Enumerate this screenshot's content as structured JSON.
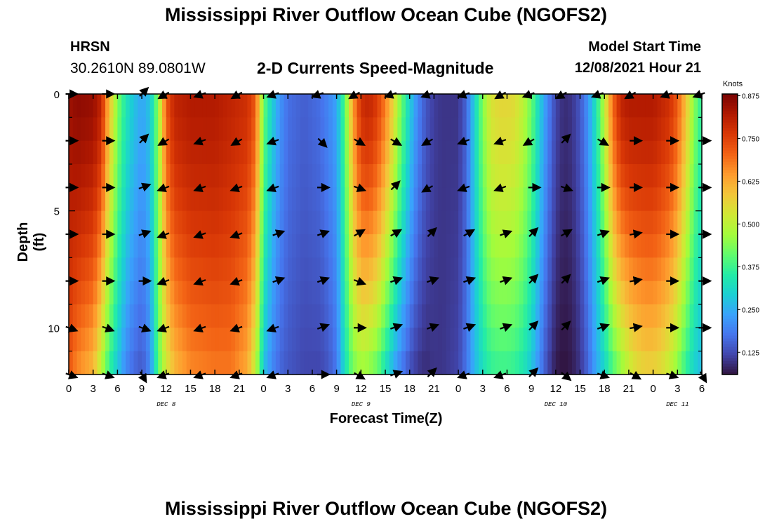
{
  "header": {
    "title": "Mississippi River Outflow Ocean Cube (NGOFS2)",
    "station": "HRSN",
    "coordinates": "30.2610N  89.0801W",
    "plot_title": "2-D Currents Speed-Magnitude",
    "model_start_label": "Model Start Time",
    "model_start_value": "12/08/2021 Hour 21"
  },
  "footer": {
    "title": "Mississippi River Outflow Ocean Cube (NGOFS2)"
  },
  "colors": {
    "colormap": [
      "#30123b",
      "#4145ab",
      "#4675ed",
      "#39a2fc",
      "#1bcfd4",
      "#24eca6",
      "#61fc6c",
      "#a4fc3b",
      "#d1e834",
      "#f3c63a",
      "#fe9b2d",
      "#f36315",
      "#d93806",
      "#b11901",
      "#7a0403"
    ]
  },
  "chart_data": {
    "type": "heatmap",
    "title": "2-D Currents Speed-Magnitude",
    "xlabel": "Forecast Time(Z)",
    "ylabel": "Depth (ft)",
    "xlim": [
      0,
      78
    ],
    "ylim": [
      0,
      12
    ],
    "x_ticks": [
      0,
      3,
      6,
      9,
      12,
      15,
      18,
      21,
      24,
      27,
      30,
      33,
      36,
      39,
      42,
      45,
      48,
      51,
      54,
      57,
      60,
      63,
      66,
      69,
      72,
      75,
      78
    ],
    "x_tick_labels": [
      "0",
      "3",
      "6",
      "9",
      "12",
      "15",
      "18",
      "21",
      "0",
      "3",
      "6",
      "9",
      "12",
      "15",
      "18",
      "21",
      "0",
      "3",
      "6",
      "9",
      "12",
      "15",
      "18",
      "21",
      "0",
      "3",
      "6"
    ],
    "y_ticks": [
      0,
      5,
      10
    ],
    "y_tick_labels": [
      "0",
      "5",
      "10"
    ],
    "date_labels": [
      {
        "x": 12,
        "label": "DEC 8"
      },
      {
        "x": 36,
        "label": "DEC 9"
      },
      {
        "x": 60,
        "label": "DEC 10"
      },
      {
        "x": 75,
        "label": "DEC 11"
      }
    ],
    "colorbar": {
      "unit": "Knots",
      "min": 0.06,
      "max": 0.88,
      "ticks": [
        0.125,
        0.25,
        0.375,
        0.5,
        0.625,
        0.75,
        0.875
      ],
      "tick_labels": [
        "0.125",
        "0.250",
        "0.375",
        "0.500",
        "0.625",
        "0.750",
        "0.875"
      ]
    },
    "speed_profile": {
      "x": [
        0,
        1,
        3,
        4,
        5,
        6,
        7,
        8,
        9,
        10,
        11,
        12,
        13,
        15,
        18,
        20,
        22,
        23,
        24,
        25,
        26,
        27,
        29,
        31,
        32,
        33,
        34,
        35,
        36,
        37,
        38,
        39,
        40,
        41,
        42,
        43,
        44,
        45,
        46,
        48,
        49,
        50,
        51,
        52,
        53,
        54,
        55,
        56,
        57,
        58,
        59,
        60,
        61,
        62,
        63,
        64,
        65,
        66,
        67,
        68,
        69,
        70,
        71,
        72,
        73,
        74,
        75,
        76,
        77,
        78
      ],
      "surface_speed": [
        0.84,
        0.86,
        0.85,
        0.8,
        0.6,
        0.44,
        0.34,
        0.28,
        0.24,
        0.28,
        0.45,
        0.72,
        0.8,
        0.82,
        0.82,
        0.8,
        0.78,
        0.72,
        0.42,
        0.3,
        0.22,
        0.17,
        0.15,
        0.17,
        0.2,
        0.24,
        0.4,
        0.64,
        0.78,
        0.8,
        0.76,
        0.68,
        0.56,
        0.42,
        0.3,
        0.2,
        0.14,
        0.11,
        0.1,
        0.1,
        0.16,
        0.3,
        0.44,
        0.54,
        0.56,
        0.56,
        0.55,
        0.5,
        0.42,
        0.3,
        0.2,
        0.12,
        0.09,
        0.1,
        0.14,
        0.22,
        0.34,
        0.5,
        0.7,
        0.8,
        0.82,
        0.82,
        0.82,
        0.82,
        0.8,
        0.78,
        0.72,
        0.6,
        0.45,
        0.35
      ],
      "deep_speed": [
        0.72,
        0.66,
        0.6,
        0.48,
        0.36,
        0.28,
        0.2,
        0.16,
        0.14,
        0.2,
        0.4,
        0.52,
        0.6,
        0.66,
        0.68,
        0.68,
        0.62,
        0.5,
        0.28,
        0.2,
        0.16,
        0.14,
        0.12,
        0.12,
        0.14,
        0.18,
        0.32,
        0.42,
        0.46,
        0.44,
        0.4,
        0.32,
        0.24,
        0.18,
        0.13,
        0.1,
        0.09,
        0.1,
        0.1,
        0.12,
        0.18,
        0.26,
        0.32,
        0.36,
        0.37,
        0.37,
        0.36,
        0.33,
        0.28,
        0.2,
        0.12,
        0.07,
        0.06,
        0.07,
        0.1,
        0.16,
        0.24,
        0.3,
        0.38,
        0.44,
        0.5,
        0.54,
        0.56,
        0.56,
        0.54,
        0.5,
        0.44,
        0.36,
        0.3,
        0.26
      ]
    },
    "vector_x": [
      0,
      4.5,
      9,
      12,
      16.5,
      21,
      25.5,
      31,
      35.5,
      40,
      44.5,
      49,
      53.5,
      57,
      61,
      65.5,
      69.5,
      74,
      78
    ],
    "vector_depths": [
      0,
      2,
      4,
      6,
      8,
      10,
      12
    ],
    "vector_angles_deg": [
      [
        0,
        0,
        45,
        210,
        200,
        210,
        200,
        200,
        210,
        200,
        200,
        200,
        210,
        200,
        210,
        200,
        210,
        200,
        200
      ],
      [
        0,
        0,
        45,
        210,
        200,
        210,
        200,
        315,
        330,
        330,
        210,
        200,
        200,
        210,
        45,
        330,
        0,
        0,
        0
      ],
      [
        0,
        0,
        20,
        200,
        200,
        200,
        200,
        0,
        340,
        45,
        210,
        200,
        200,
        0,
        340,
        0,
        0,
        0,
        0
      ],
      [
        0,
        0,
        20,
        200,
        200,
        200,
        20,
        20,
        30,
        30,
        45,
        30,
        20,
        45,
        30,
        20,
        10,
        0,
        0
      ],
      [
        0,
        0,
        0,
        200,
        200,
        200,
        20,
        20,
        340,
        20,
        20,
        20,
        20,
        45,
        45,
        20,
        10,
        0,
        0
      ],
      [
        340,
        340,
        340,
        200,
        200,
        200,
        200,
        20,
        0,
        20,
        20,
        20,
        20,
        45,
        45,
        20,
        10,
        0,
        0
      ],
      [
        340,
        340,
        300,
        200,
        200,
        200,
        200,
        0,
        330,
        20,
        45,
        200,
        200,
        45,
        320,
        340,
        330,
        340,
        300
      ]
    ]
  }
}
